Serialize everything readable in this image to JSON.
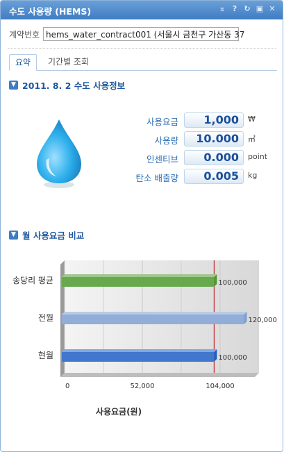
{
  "window": {
    "title": "수도 사용량 (HEMS)"
  },
  "contract": {
    "label": "계약번호",
    "value": "hems_water_contract001 (서울시 금천구 가산동 37"
  },
  "tabs": [
    {
      "label": "요약",
      "active": true
    },
    {
      "label": "기간별 조회",
      "active": false
    }
  ],
  "usage_section": {
    "title": "2011. 8. 2 수도 사용정보",
    "rows": [
      {
        "label": "사용요금",
        "value": "1,000",
        "unit": "₩"
      },
      {
        "label": "사용량",
        "value": "10.000",
        "unit": "㎥"
      },
      {
        "label": "인센티브",
        "value": "0.000",
        "unit": "point"
      },
      {
        "label": "탄소 배출량",
        "value": "0.005",
        "unit": "kg"
      }
    ]
  },
  "compare_section": {
    "title": "월 사용요금 비교"
  },
  "chart_data": {
    "type": "bar",
    "orientation": "horizontal",
    "categories": [
      "송당리 평균",
      "전월",
      "현월"
    ],
    "values": [
      100000,
      120000,
      100000
    ],
    "value_labels": [
      "100,000",
      "120,000",
      "100,000"
    ],
    "bar_colors": [
      "#4f9a2e",
      "#7f9ed0",
      "#1f5fc4"
    ],
    "xlim": [
      0,
      130000
    ],
    "xticks": [
      0,
      52000,
      104000
    ],
    "xtick_labels": [
      "0",
      "52,000",
      "104,000"
    ],
    "xlabel": "사용요금(원)",
    "reference_line": 100000,
    "reference_color": "#c0272d"
  },
  "colors": {
    "accent": "#3f7cc4",
    "label_blue": "#2a6db5",
    "drop": "#29a9e8"
  }
}
